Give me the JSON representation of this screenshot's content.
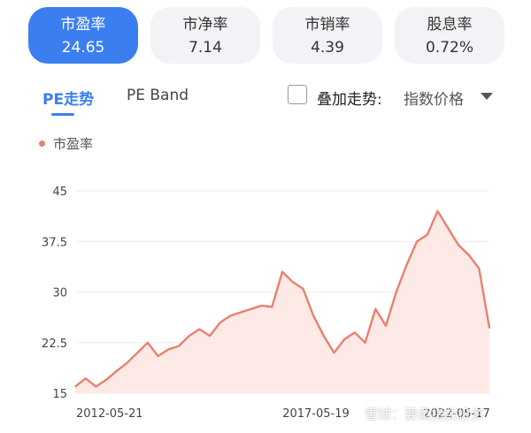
{
  "metrics": [
    {
      "label": "市盈率",
      "value": "24.65",
      "active": true
    },
    {
      "label": "市净率",
      "value": "7.14",
      "active": false
    },
    {
      "label": "市销率",
      "value": "4.39",
      "active": false
    },
    {
      "label": "股息率",
      "value": "0.72%",
      "active": false
    }
  ],
  "tabs": {
    "pe_trend": "PE走势",
    "pe_band": "PE Band"
  },
  "overlay": {
    "label": "叠加走势:",
    "value": "指数价格",
    "checked": false
  },
  "legend": {
    "label": "市盈率"
  },
  "watermark": "雪球：要柔指数投资",
  "colors": {
    "accent": "#3b7ef0",
    "line": "#e8806f",
    "fill": "#fde9e5"
  },
  "chart_data": {
    "type": "area",
    "title": "",
    "xlabel": "",
    "ylabel": "",
    "ylim": [
      15,
      45
    ],
    "yticks": [
      15,
      22.5,
      30,
      37.5,
      45
    ],
    "ytick_labels": [
      "15",
      "22.5",
      "30",
      "37.5",
      "45"
    ],
    "xtick_labels": [
      "2012-05-21",
      "2017-05-19",
      "2022-05-17"
    ],
    "grid": true,
    "series": [
      {
        "name": "市盈率",
        "x": [
          "2012-05",
          "2012-08",
          "2012-11",
          "2013-02",
          "2013-05",
          "2013-08",
          "2013-11",
          "2014-02",
          "2014-05",
          "2014-08",
          "2014-11",
          "2015-02",
          "2015-05",
          "2015-08",
          "2015-11",
          "2016-02",
          "2016-05",
          "2016-08",
          "2016-11",
          "2017-02",
          "2017-05",
          "2017-08",
          "2017-11",
          "2018-02",
          "2018-05",
          "2018-08",
          "2018-11",
          "2019-02",
          "2019-05",
          "2019-08",
          "2019-11",
          "2020-02",
          "2020-05",
          "2020-08",
          "2020-11",
          "2021-02",
          "2021-05",
          "2021-08",
          "2021-11",
          "2022-02",
          "2022-05"
        ],
        "values": [
          16.0,
          17.2,
          16.0,
          17.0,
          18.3,
          19.5,
          21.0,
          22.5,
          20.5,
          21.5,
          22.0,
          23.5,
          24.5,
          23.5,
          25.5,
          26.5,
          27.0,
          27.5,
          28.0,
          27.8,
          33.0,
          31.5,
          30.5,
          26.5,
          23.5,
          21.0,
          23.0,
          24.0,
          22.5,
          27.5,
          25.0,
          30.0,
          34.0,
          37.5,
          38.5,
          42.0,
          39.5,
          37.0,
          35.5,
          33.5,
          24.7
        ]
      }
    ]
  }
}
